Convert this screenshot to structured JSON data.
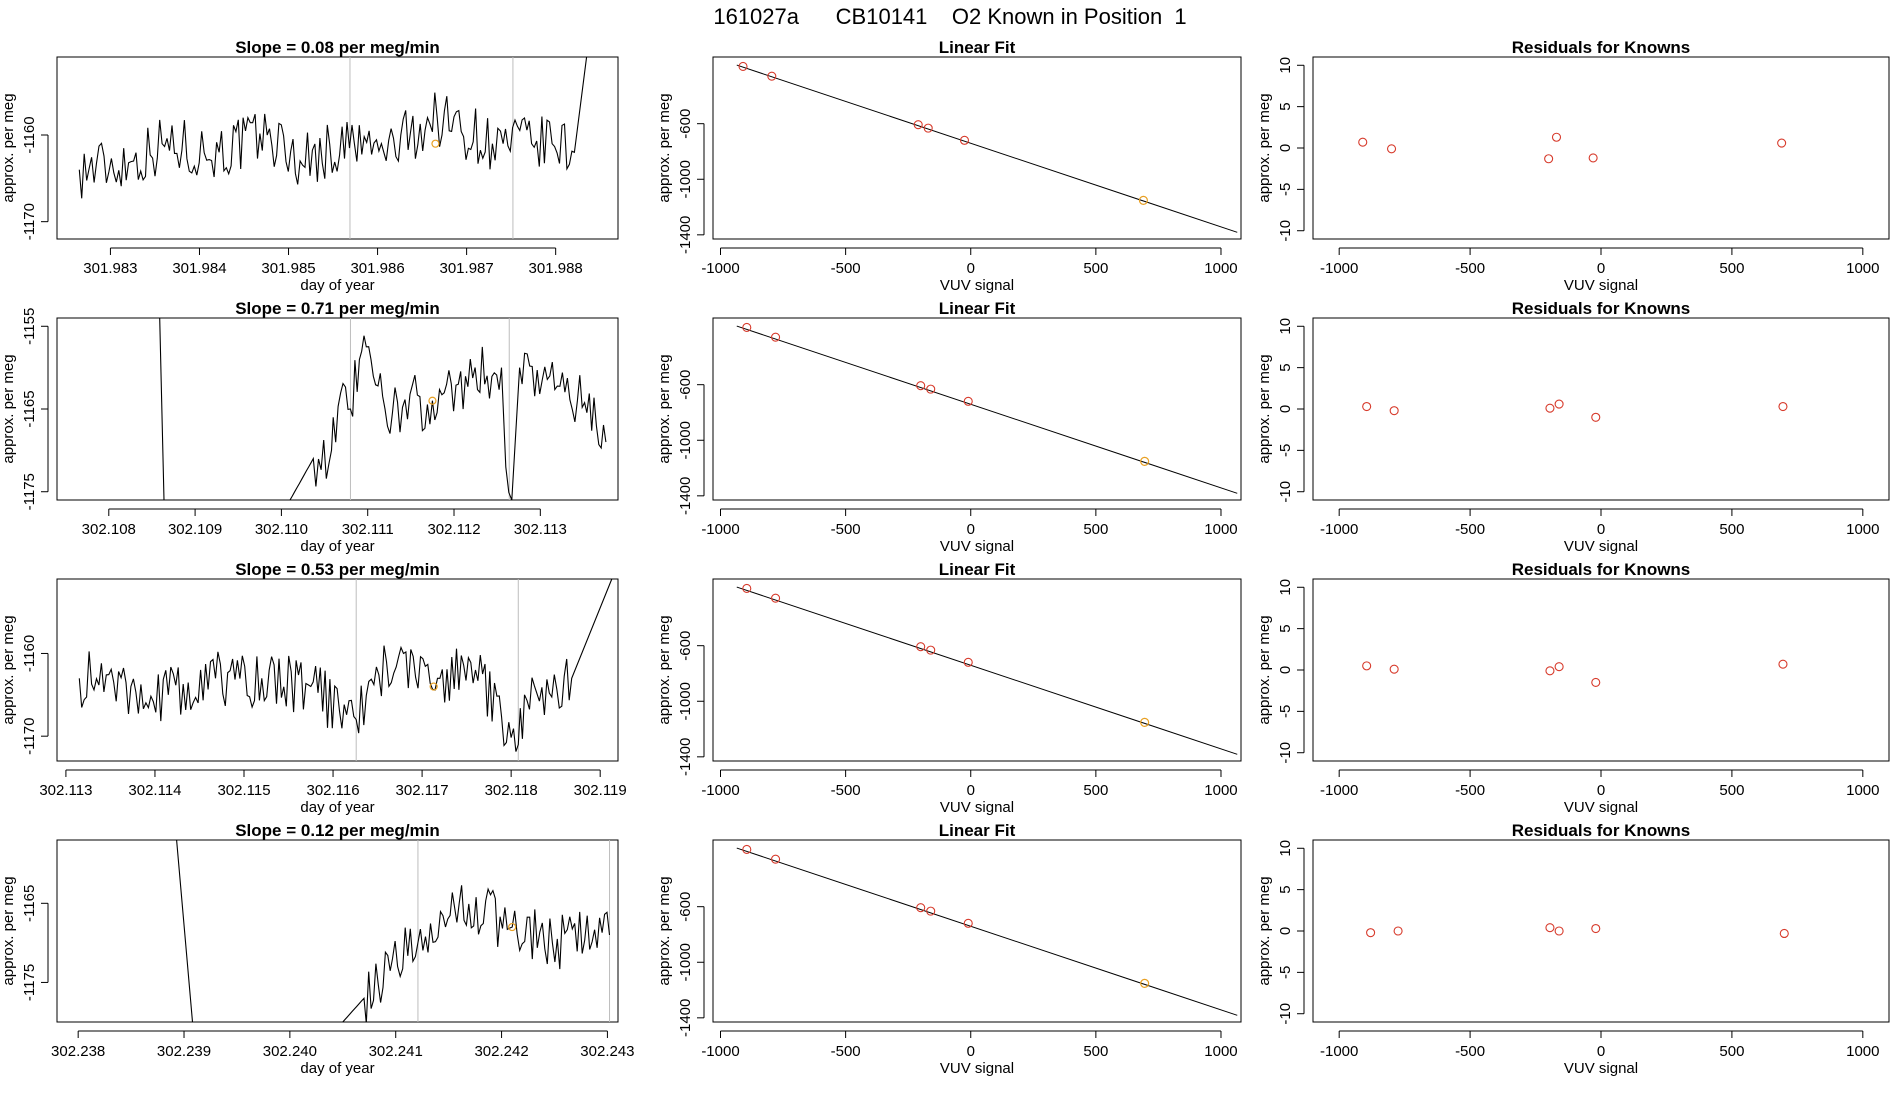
{
  "page": {
    "title": "161027a      CB10141    O2 Known in Position  1"
  },
  "colors": {
    "trace": "#000000",
    "marker_known": "#d73a2b",
    "marker_current": "#e8a023",
    "vline": "#bdbdbd",
    "axis": "#000000"
  },
  "chart_data": [
    {
      "type": "line",
      "panel": "timeseries",
      "title": "Slope =  0.08  per meg/min",
      "xlabel": "day of year",
      "ylabel": "approx. per meg",
      "xlim": [
        301.9824,
        301.9887
      ],
      "ylim": [
        -1172,
        -1151
      ],
      "xticks": [
        301.983,
        301.984,
        301.985,
        301.986,
        301.987,
        301.988
      ],
      "xtick_labels": [
        "301.983",
        "301.984",
        "301.985",
        "301.986",
        "301.987",
        "301.988"
      ],
      "yticks": [
        -1170,
        -1160
      ],
      "ytick_labels": [
        "-1170",
        "-1160"
      ],
      "vlines": [
        301.98569,
        301.98752
      ],
      "marker": {
        "x": 301.98665,
        "y": -1161
      },
      "series": [
        {
          "name": "trace",
          "x": [
            301.98265,
            301.98326,
            301.98358,
            301.98422,
            301.98476,
            301.98513,
            301.98574,
            301.98607,
            301.98667,
            301.98729,
            301.98741,
            301.98773,
            301.98796,
            301.98821,
            301.98836
          ],
          "y": [
            -1164,
            -1163,
            -1161,
            -1162,
            -1160,
            -1163,
            -1161,
            -1162,
            -1158,
            -1161,
            -1161,
            -1161,
            -1161,
            -1162,
            -1150
          ]
        }
      ]
    },
    {
      "type": "scatter",
      "panel": "linear-fit",
      "title": "Linear Fit",
      "xlabel": "VUV signal",
      "ylabel": "approx. per meg",
      "xlim": [
        -1030,
        1080
      ],
      "ylim": [
        -1430,
        -120
      ],
      "xticks": [
        -1000,
        -500,
        0,
        500,
        1000
      ],
      "xtick_labels": [
        "-1000",
        "-500",
        "0",
        "500",
        "1000"
      ],
      "yticks": [
        -1400,
        -1000,
        -600
      ],
      "ytick_labels": [
        "-1400",
        "-1000",
        "-600"
      ],
      "fit_line": {
        "x": [
          -935,
          1065
        ],
        "y": [
          -178,
          -1382
        ]
      },
      "points": {
        "x": [
          -910,
          -795,
          -210,
          -170,
          -25
        ],
        "y": [
          -188,
          -258,
          -607,
          -632,
          -720
        ]
      },
      "current_point": {
        "x": 690,
        "y": -1152
      }
    },
    {
      "type": "scatter",
      "panel": "residuals",
      "title": "Residuals for Knowns",
      "xlabel": "VUV signal",
      "ylabel": "approx. per meg",
      "xlim": [
        -1100,
        1100
      ],
      "ylim": [
        -11,
        11
      ],
      "xticks": [
        -1000,
        -500,
        0,
        500,
        1000
      ],
      "xtick_labels": [
        "-1000",
        "-500",
        "0",
        "500",
        "1000"
      ],
      "yticks": [
        -10,
        -5,
        0,
        5,
        10
      ],
      "ytick_labels": [
        "-10",
        "-5",
        "0",
        "5",
        "10"
      ],
      "points": {
        "x": [
          -910,
          -800,
          -200,
          -170,
          -30,
          690
        ],
        "y": [
          0.7,
          -0.1,
          -1.3,
          1.3,
          -1.2,
          0.6
        ]
      }
    },
    {
      "type": "line",
      "panel": "timeseries",
      "title": "Slope =  0.71  per meg/min",
      "xlabel": "day of year",
      "ylabel": "approx. per meg",
      "xlim": [
        302.1074,
        302.1139
      ],
      "ylim": [
        -1176,
        -1154
      ],
      "xticks": [
        302.108,
        302.109,
        302.11,
        302.111,
        302.112,
        302.113
      ],
      "xtick_labels": [
        "302.108",
        "302.109",
        "302.110",
        "302.111",
        "302.112",
        "302.113"
      ],
      "yticks": [
        -1175,
        -1165,
        -1155
      ],
      "ytick_labels": [
        "-1175",
        "-1165",
        "-1155"
      ],
      "vlines": [
        302.1108,
        302.11264
      ],
      "marker": {
        "x": 302.11175,
        "y": -1164
      },
      "series": [
        {
          "name": "trace",
          "x": [
            302.10859,
            302.10864,
            302.1101,
            302.11037,
            302.11058,
            302.1106,
            302.1108,
            302.11093,
            302.1112,
            302.11175,
            302.11205,
            302.11255,
            302.1126,
            302.11267,
            302.11276,
            302.11311,
            302.11343,
            302.11376
          ],
          "y": [
            -1154,
            -1176,
            -1176,
            -1171,
            -1170,
            -1166,
            -1165,
            -1158,
            -1165,
            -1164,
            -1162,
            -1160,
            -1172,
            -1176,
            -1160,
            -1161,
            -1164,
            -1169
          ]
        }
      ]
    },
    {
      "type": "scatter",
      "panel": "linear-fit",
      "title": "Linear Fit",
      "xlabel": "VUV signal",
      "ylabel": "approx. per meg",
      "xlim": [
        -1030,
        1080
      ],
      "ylim": [
        -1430,
        -120
      ],
      "xticks": [
        -1000,
        -500,
        0,
        500,
        1000
      ],
      "xtick_labels": [
        "-1000",
        "-500",
        "0",
        "500",
        "1000"
      ],
      "yticks": [
        -1400,
        -1000,
        -600
      ],
      "ytick_labels": [
        "-1400",
        "-1000",
        "-600"
      ],
      "fit_line": {
        "x": [
          -935,
          1065
        ],
        "y": [
          -178,
          -1382
        ]
      },
      "points": {
        "x": [
          -895,
          -780,
          -200,
          -160,
          -10
        ],
        "y": [
          -188,
          -258,
          -607,
          -632,
          -720
        ]
      },
      "current_point": {
        "x": 695,
        "y": -1152
      }
    },
    {
      "type": "scatter",
      "panel": "residuals",
      "title": "Residuals for Knowns",
      "xlabel": "VUV signal",
      "ylabel": "approx. per meg",
      "xlim": [
        -1100,
        1100
      ],
      "ylim": [
        -11,
        11
      ],
      "xticks": [
        -1000,
        -500,
        0,
        500,
        1000
      ],
      "xtick_labels": [
        "-1000",
        "-500",
        "0",
        "500",
        "1000"
      ],
      "yticks": [
        -10,
        -5,
        0,
        5,
        10
      ],
      "ytick_labels": [
        "-10",
        "-5",
        "0",
        "5",
        "10"
      ],
      "points": {
        "x": [
          -895,
          -790,
          -195,
          -160,
          -20,
          695
        ],
        "y": [
          0.3,
          -0.2,
          0.1,
          0.6,
          -1.0,
          0.3
        ]
      }
    },
    {
      "type": "line",
      "panel": "timeseries",
      "title": "Slope =  0.53  per meg/min",
      "xlabel": "day of year",
      "ylabel": "approx. per meg",
      "xlim": [
        302.1129,
        302.1192
      ],
      "ylim": [
        -1173,
        -1151
      ],
      "xticks": [
        302.113,
        302.114,
        302.115,
        302.116,
        302.117,
        302.118,
        302.119
      ],
      "xtick_labels": [
        "302.113",
        "302.114",
        "302.115",
        "302.116",
        "302.117",
        "302.118",
        "302.119"
      ],
      "yticks": [
        -1170,
        -1160
      ],
      "ytick_labels": [
        "-1170",
        "-1160"
      ],
      "vlines": [
        302.11626,
        302.11808
      ],
      "marker": {
        "x": 302.11713,
        "y": -1164
      },
      "series": [
        {
          "name": "trace",
          "x": [
            302.11315,
            302.11373,
            302.11415,
            302.11468,
            302.1152,
            302.11575,
            302.11626,
            302.1166,
            302.1172,
            302.1176,
            302.11808,
            302.11815,
            302.11868,
            302.11913
          ],
          "y": [
            -1163,
            -1164,
            -1165,
            -1163,
            -1163,
            -1164,
            -1168,
            -1161,
            -1163,
            -1162,
            -1171,
            -1165,
            -1163,
            -1151
          ]
        }
      ]
    },
    {
      "type": "scatter",
      "panel": "linear-fit",
      "title": "Linear Fit",
      "xlabel": "VUV signal",
      "ylabel": "approx. per meg",
      "xlim": [
        -1030,
        1080
      ],
      "ylim": [
        -1430,
        -120
      ],
      "xticks": [
        -1000,
        -500,
        0,
        500,
        1000
      ],
      "xtick_labels": [
        "-1000",
        "-500",
        "0",
        "500",
        "1000"
      ],
      "yticks": [
        -1400,
        -1000,
        -600
      ],
      "ytick_labels": [
        "-1400",
        "-1000",
        "-600"
      ],
      "fit_line": {
        "x": [
          -935,
          1065
        ],
        "y": [
          -178,
          -1382
        ]
      },
      "points": {
        "x": [
          -895,
          -780,
          -200,
          -160,
          -10
        ],
        "y": [
          -188,
          -258,
          -607,
          -632,
          -720
        ]
      },
      "current_point": {
        "x": 695,
        "y": -1152
      }
    },
    {
      "type": "scatter",
      "panel": "residuals",
      "title": "Residuals for Knowns",
      "xlabel": "VUV signal",
      "ylabel": "approx. per meg",
      "xlim": [
        -1100,
        1100
      ],
      "ylim": [
        -11,
        11
      ],
      "xticks": [
        -1000,
        -500,
        0,
        500,
        1000
      ],
      "xtick_labels": [
        "-1000",
        "-500",
        "0",
        "500",
        "1000"
      ],
      "yticks": [
        -10,
        -5,
        0,
        5,
        10
      ],
      "ytick_labels": [
        "-10",
        "-5",
        "0",
        "5",
        "10"
      ],
      "points": {
        "x": [
          -895,
          -790,
          -195,
          -160,
          -20,
          695
        ],
        "y": [
          0.5,
          0.1,
          -0.1,
          0.4,
          -1.5,
          0.7
        ]
      }
    },
    {
      "type": "line",
      "panel": "timeseries",
      "title": "Slope =  0.12  per meg/min",
      "xlabel": "day of year",
      "ylabel": "approx. per meg",
      "xlim": [
        302.2378,
        302.2431
      ],
      "ylim": [
        -1180,
        -1157
      ],
      "xticks": [
        302.238,
        302.239,
        302.24,
        302.241,
        302.242,
        302.243
      ],
      "xtick_labels": [
        "302.238",
        "302.239",
        "302.240",
        "302.241",
        "302.242",
        "302.243"
      ],
      "yticks": [
        -1175,
        -1165
      ],
      "ytick_labels": [
        "-1175",
        "-1165"
      ],
      "vlines": [
        302.24121,
        302.24302
      ],
      "marker": {
        "x": 302.2421,
        "y": -1168
      },
      "series": [
        {
          "name": "trace",
          "x": [
            302.23893,
            302.23908,
            302.239,
            302.2405,
            302.2407,
            302.24097,
            302.24121,
            302.24147,
            302.2416,
            302.2421,
            302.24248,
            302.24302
          ],
          "y": [
            -1157,
            -1180,
            -1180,
            -1180,
            -1177,
            -1172,
            -1170,
            -1168,
            -1165,
            -1168,
            -1170,
            -1169
          ]
        }
      ]
    },
    {
      "type": "scatter",
      "panel": "linear-fit",
      "title": "Linear Fit",
      "xlabel": "VUV signal",
      "ylabel": "approx. per meg",
      "xlim": [
        -1030,
        1080
      ],
      "ylim": [
        -1430,
        -120
      ],
      "xticks": [
        -1000,
        -500,
        0,
        500,
        1000
      ],
      "xtick_labels": [
        "-1000",
        "-500",
        "0",
        "500",
        "1000"
      ],
      "yticks": [
        -1400,
        -1000,
        -600
      ],
      "ytick_labels": [
        "-1400",
        "-1000",
        "-600"
      ],
      "fit_line": {
        "x": [
          -935,
          1065
        ],
        "y": [
          -178,
          -1382
        ]
      },
      "points": {
        "x": [
          -895,
          -780,
          -200,
          -160,
          -10
        ],
        "y": [
          -188,
          -258,
          -607,
          -632,
          -720
        ]
      },
      "current_point": {
        "x": 695,
        "y": -1152
      }
    },
    {
      "type": "scatter",
      "panel": "residuals",
      "title": "Residuals for Knowns",
      "xlabel": "VUV signal",
      "ylabel": "approx. per meg",
      "xlim": [
        -1100,
        1100
      ],
      "ylim": [
        -11,
        11
      ],
      "xticks": [
        -1000,
        -500,
        0,
        500,
        1000
      ],
      "xtick_labels": [
        "-1000",
        "-500",
        "0",
        "500",
        "1000"
      ],
      "yticks": [
        -10,
        -5,
        0,
        5,
        10
      ],
      "ytick_labels": [
        "-10",
        "-5",
        "0",
        "5",
        "10"
      ],
      "points": {
        "x": [
          -880,
          -775,
          -195,
          -160,
          -20,
          700
        ],
        "y": [
          -0.2,
          0.0,
          0.4,
          0.0,
          0.3,
          -0.3
        ]
      }
    }
  ]
}
